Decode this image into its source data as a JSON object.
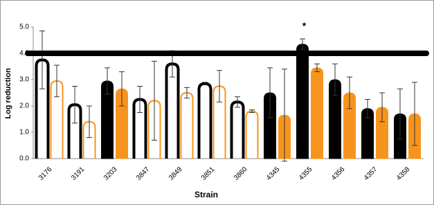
{
  "chart_data": {
    "type": "bar",
    "x_label": "Strain",
    "y_label": "Log reduction",
    "categories": [
      "3176",
      "3191",
      "3203",
      "3847",
      "3849",
      "3851",
      "3860",
      "4345",
      "4355",
      "4356",
      "4357",
      "4358"
    ],
    "hollow": [
      true,
      true,
      false,
      true,
      true,
      true,
      true,
      false,
      false,
      false,
      false,
      false
    ],
    "series": [
      {
        "color": "#000000",
        "values": [
          3.75,
          2.05,
          2.95,
          2.25,
          3.6,
          2.85,
          2.15,
          2.5,
          4.35,
          3.0,
          1.9,
          1.7
        ],
        "errors": [
          1.1,
          0.7,
          0.5,
          0.5,
          0.5,
          0.05,
          0.2,
          0.95,
          0.2,
          0.6,
          0.35,
          0.95
        ]
      },
      {
        "color": "#f7941d",
        "values": [
          2.95,
          1.4,
          2.65,
          2.2,
          2.5,
          2.75,
          1.8,
          1.65,
          3.45,
          2.5,
          1.95,
          1.7
        ],
        "errors": [
          0.6,
          0.6,
          0.65,
          1.5,
          0.2,
          0.6,
          0.05,
          1.75,
          0.15,
          0.6,
          0.55,
          1.2
        ]
      }
    ],
    "reference_line": 4.0,
    "annotations": [
      {
        "text": "*",
        "category": "4355"
      }
    ],
    "ylim": [
      0,
      5
    ],
    "yticks": [
      {
        "value": 0,
        "label": "0.0"
      },
      {
        "value": 1,
        "label": "1.0"
      },
      {
        "value": 2,
        "label": "2.0"
      },
      {
        "value": 3,
        "label": "3.0"
      },
      {
        "value": 4,
        "label": "4.0"
      },
      {
        "value": 5,
        "label": "5.0"
      }
    ]
  }
}
